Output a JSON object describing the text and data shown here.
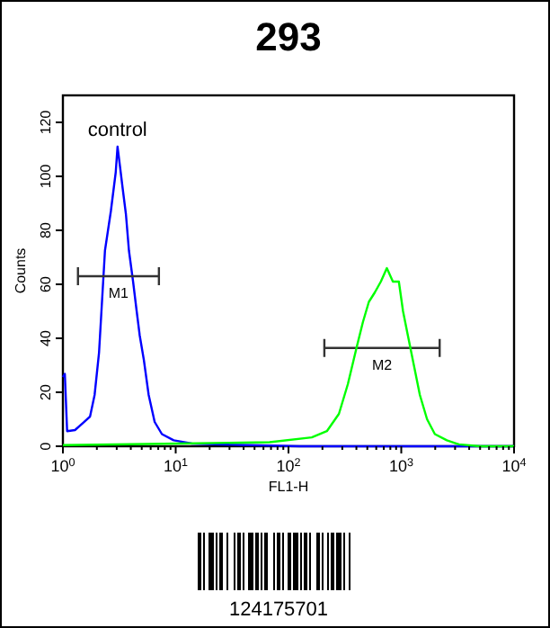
{
  "chart_data": {
    "type": "line",
    "title": "293",
    "xlabel": "FL1-H",
    "ylabel": "Counts",
    "log": "x",
    "xlim": [
      1,
      10000
    ],
    "ylim": [
      0,
      130
    ],
    "xticks": [
      {
        "value": 1,
        "label": "10$^{0}$"
      },
      {
        "value": 2,
        "label": null
      },
      {
        "value": 3,
        "label": null
      },
      {
        "value": 4,
        "label": null
      },
      {
        "value": 5,
        "label": null
      },
      {
        "value": 6,
        "label": null
      },
      {
        "value": 7,
        "label": null
      },
      {
        "value": 8,
        "label": null
      },
      {
        "value": 9,
        "label": null
      },
      {
        "value": 10,
        "label": "10$^{1}$"
      },
      {
        "value": 20,
        "label": null
      },
      {
        "value": 30,
        "label": null
      },
      {
        "value": 40,
        "label": null
      },
      {
        "value": 50,
        "label": null
      },
      {
        "value": 60,
        "label": null
      },
      {
        "value": 70,
        "label": null
      },
      {
        "value": 80,
        "label": null
      },
      {
        "value": 90,
        "label": null
      },
      {
        "value": 100,
        "label": "10$^{2}$"
      },
      {
        "value": 200,
        "label": null
      },
      {
        "value": 300,
        "label": null
      },
      {
        "value": 400,
        "label": null
      },
      {
        "value": 500,
        "label": null
      },
      {
        "value": 600,
        "label": null
      },
      {
        "value": 700,
        "label": null
      },
      {
        "value": 800,
        "label": null
      },
      {
        "value": 900,
        "label": null
      },
      {
        "value": 1000,
        "label": "10$^{3}$"
      },
      {
        "value": 2000,
        "label": null
      },
      {
        "value": 3000,
        "label": null
      },
      {
        "value": 4000,
        "label": null
      },
      {
        "value": 5000,
        "label": null
      },
      {
        "value": 6000,
        "label": null
      },
      {
        "value": 7000,
        "label": null
      },
      {
        "value": 8000,
        "label": null
      },
      {
        "value": 9000,
        "label": null
      },
      {
        "value": 10000,
        "label": "10$^{4}$"
      }
    ],
    "yticks": [
      0,
      20,
      40,
      60,
      80,
      100,
      120
    ],
    "grid": false,
    "legend": false,
    "marker": "none",
    "line_style": "solid",
    "series": [
      {
        "name": "control",
        "color": "#0000ff",
        "x": [
          1,
          1.04,
          1.09,
          1.28,
          1.53,
          1.74,
          1.91,
          2.09,
          2.36,
          2.66,
          2.94,
          3.05,
          3.2,
          3.4,
          3.62,
          3.85,
          4.19,
          4.51,
          4.8,
          5.22,
          5.76,
          6.51,
          7.55,
          9.6,
          13.9,
          37,
          126,
          1460,
          10000
        ],
        "values": [
          25.6,
          26.8,
          5.6,
          6,
          8.9,
          11,
          19,
          34.6,
          72.5,
          87,
          101.5,
          111,
          104,
          95,
          86,
          72.5,
          61,
          50,
          41,
          32,
          19,
          9,
          4.5,
          2.2,
          1,
          0.5,
          0,
          0,
          0
        ]
      },
      {
        "name": "M1",
        "color": "#333333",
        "x": [
          1.36,
          7.1
        ],
        "values": [
          63,
          63
        ]
      },
      {
        "name": "M2",
        "color": "#333333",
        "x": [
          208,
          2190
        ],
        "values": [
          36.4,
          36.4
        ]
      },
      {
        "color": "#00ff00",
        "x": [
          1,
          10.9,
          68,
          161,
          219,
          280,
          336,
          404,
          457,
          516,
          583,
          659,
          745,
          843,
          952,
          1037,
          1145,
          1294,
          1462,
          1694,
          1986,
          2536,
          3243,
          4977,
          10000
        ],
        "values": [
          0.4,
          1,
          1.5,
          3.3,
          5.6,
          12,
          23,
          37,
          46,
          53.5,
          57,
          61,
          66,
          61,
          61,
          50,
          41,
          30,
          19,
          10,
          4.5,
          2.2,
          0.7,
          0,
          0
        ]
      }
    ],
    "annotations": [
      "124175701"
    ]
  }
}
